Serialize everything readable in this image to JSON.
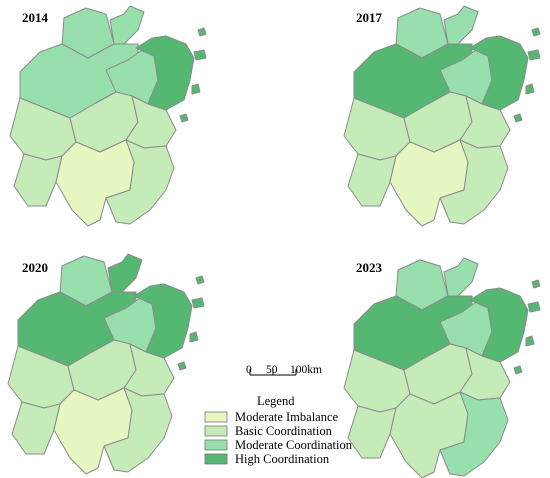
{
  "colors": {
    "Moderate Imbalance": "#e6f7c2",
    "Basic Coordination": "#c5ecb8",
    "Moderate Coordination": "#97e0ac",
    "High Coordination": "#55b872"
  },
  "panels": [
    {
      "year": "2014",
      "classes": [
        "Moderate Coordination",
        "Moderate Coordination",
        "Moderate Coordination",
        "Moderate Coordination",
        "High Coordination",
        "Basic Coordination",
        "Basic Coordination",
        "Basic Coordination",
        "Basic Coordination",
        "Moderate Imbalance",
        "Basic Coordination"
      ]
    },
    {
      "year": "2017",
      "classes": [
        "Moderate Coordination",
        "Moderate Coordination",
        "High Coordination",
        "Moderate Coordination",
        "High Coordination",
        "Basic Coordination",
        "Basic Coordination",
        "Basic Coordination",
        "Basic Coordination",
        "Moderate Imbalance",
        "Basic Coordination"
      ]
    },
    {
      "year": "2020",
      "classes": [
        "Moderate Coordination",
        "High Coordination",
        "High Coordination",
        "Moderate Coordination",
        "High Coordination",
        "Basic Coordination",
        "Basic Coordination",
        "Basic Coordination",
        "Basic Coordination",
        "Moderate Imbalance",
        "Basic Coordination"
      ]
    },
    {
      "year": "2023",
      "classes": [
        "Moderate Coordination",
        "Moderate Coordination",
        "High Coordination",
        "Moderate Coordination",
        "High Coordination",
        "Basic Coordination",
        "Basic Coordination",
        "Basic Coordination",
        "Basic Coordination",
        "Basic Coordination",
        "Moderate Coordination"
      ]
    }
  ],
  "scale": {
    "ticks": [
      "0",
      "50",
      "100km"
    ]
  },
  "legend": {
    "title": "Legend",
    "items": [
      {
        "label": "Moderate Imbalance",
        "class": "Moderate Imbalance"
      },
      {
        "label": "Basic Coordination",
        "class": "Basic Coordination"
      },
      {
        "label": "Moderate Coordination",
        "class": "Moderate Coordination"
      },
      {
        "label": "High Coordination",
        "class": "High Coordination"
      }
    ]
  }
}
